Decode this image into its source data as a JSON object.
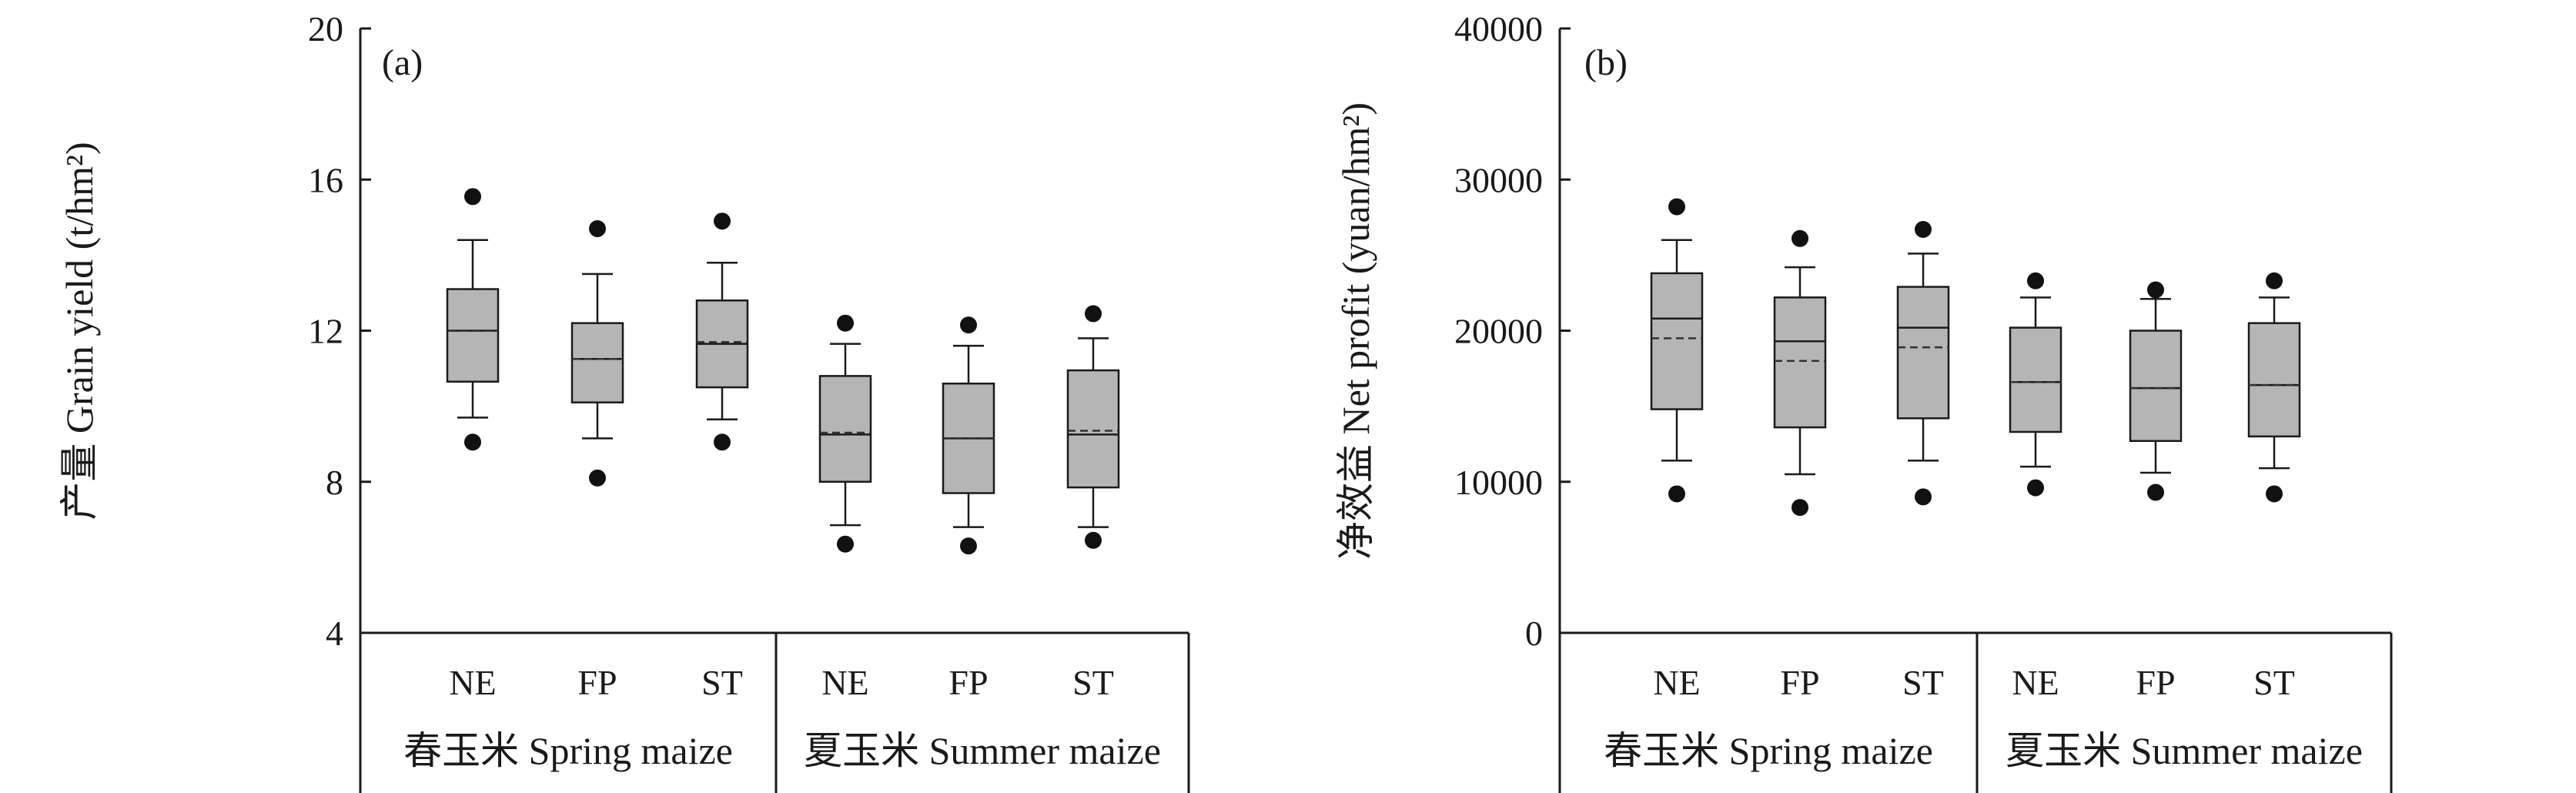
{
  "chart_data": [
    {
      "type": "box",
      "panel_label": "(a)",
      "ylabel": "产量 Grain yield (t/hm²)",
      "ylim": [
        4,
        20
      ],
      "yticks": [
        4,
        8,
        12,
        16,
        20
      ],
      "groups": [
        {
          "label": "春玉米 Spring maize",
          "categories": [
            "NE",
            "FP",
            "ST"
          ]
        },
        {
          "label": "夏玉米 Summer maize",
          "categories": [
            "NE",
            "FP",
            "ST"
          ]
        }
      ],
      "boxes": [
        {
          "group": "春玉米 Spring maize",
          "category": "NE",
          "p5": 9.05,
          "p10": 9.7,
          "q1": 10.65,
          "median": 12.0,
          "mean": 12.0,
          "q3": 13.1,
          "p90": 14.4,
          "p95": 15.55
        },
        {
          "group": "春玉米 Spring maize",
          "category": "FP",
          "p5": 8.1,
          "p10": 9.15,
          "q1": 10.1,
          "median": 11.25,
          "mean": 11.25,
          "q3": 12.2,
          "p90": 13.5,
          "p95": 14.7
        },
        {
          "group": "春玉米 Spring maize",
          "category": "ST",
          "p5": 9.05,
          "p10": 9.65,
          "q1": 10.5,
          "median": 11.65,
          "mean": 11.7,
          "q3": 12.8,
          "p90": 13.8,
          "p95": 14.9
        },
        {
          "group": "夏玉米 Summer maize",
          "category": "NE",
          "p5": 6.35,
          "p10": 6.85,
          "q1": 8.0,
          "median": 9.25,
          "mean": 9.3,
          "q3": 10.8,
          "p90": 11.65,
          "p95": 12.2
        },
        {
          "group": "夏玉米 Summer maize",
          "category": "FP",
          "p5": 6.3,
          "p10": 6.8,
          "q1": 7.7,
          "median": 9.15,
          "mean": 9.15,
          "q3": 10.6,
          "p90": 11.6,
          "p95": 12.15
        },
        {
          "group": "夏玉米 Summer maize",
          "category": "ST",
          "p5": 6.45,
          "p10": 6.8,
          "q1": 7.85,
          "median": 9.25,
          "mean": 9.35,
          "q3": 10.95,
          "p90": 11.8,
          "p95": 12.45
        }
      ]
    },
    {
      "type": "box",
      "panel_label": "(b)",
      "ylabel": "净效益 Net profit (yuan/hm²)",
      "ylim": [
        0,
        40000
      ],
      "yticks": [
        0,
        10000,
        20000,
        30000,
        40000
      ],
      "groups": [
        {
          "label": "春玉米 Spring maize",
          "categories": [
            "NE",
            "FP",
            "ST"
          ]
        },
        {
          "label": "夏玉米 Summer maize",
          "categories": [
            "NE",
            "FP",
            "ST"
          ]
        }
      ],
      "boxes": [
        {
          "group": "春玉米 Spring maize",
          "category": "NE",
          "p5": 9200,
          "p10": 11400,
          "q1": 14800,
          "median": 20800,
          "mean": 19500,
          "q3": 23800,
          "p90": 26000,
          "p95": 28200
        },
        {
          "group": "春玉米 Spring maize",
          "category": "FP",
          "p5": 8300,
          "p10": 10500,
          "q1": 13600,
          "median": 19300,
          "mean": 18000,
          "q3": 22200,
          "p90": 24200,
          "p95": 26100
        },
        {
          "group": "春玉米 Spring maize",
          "category": "ST",
          "p5": 9000,
          "p10": 11400,
          "q1": 14200,
          "median": 20200,
          "mean": 18900,
          "q3": 22900,
          "p90": 25100,
          "p95": 26700
        },
        {
          "group": "夏玉米 Summer maize",
          "category": "NE",
          "p5": 9600,
          "p10": 11000,
          "q1": 13300,
          "median": 16600,
          "mean": 16600,
          "q3": 20200,
          "p90": 22200,
          "p95": 23300
        },
        {
          "group": "夏玉米 Summer maize",
          "category": "FP",
          "p5": 9300,
          "p10": 10600,
          "q1": 12700,
          "median": 16200,
          "mean": 16200,
          "q3": 20000,
          "p90": 22100,
          "p95": 22700
        },
        {
          "group": "夏玉米 Summer maize",
          "category": "ST",
          "p5": 9200,
          "p10": 10900,
          "q1": 13000,
          "median": 16400,
          "mean": 16400,
          "q3": 20500,
          "p90": 22200,
          "p95": 23300
        }
      ]
    }
  ],
  "colors": {
    "box_fill": "#b5b5b5",
    "line": "#1a1a1a",
    "mean_line": "#333333",
    "outlier": "#111111"
  }
}
